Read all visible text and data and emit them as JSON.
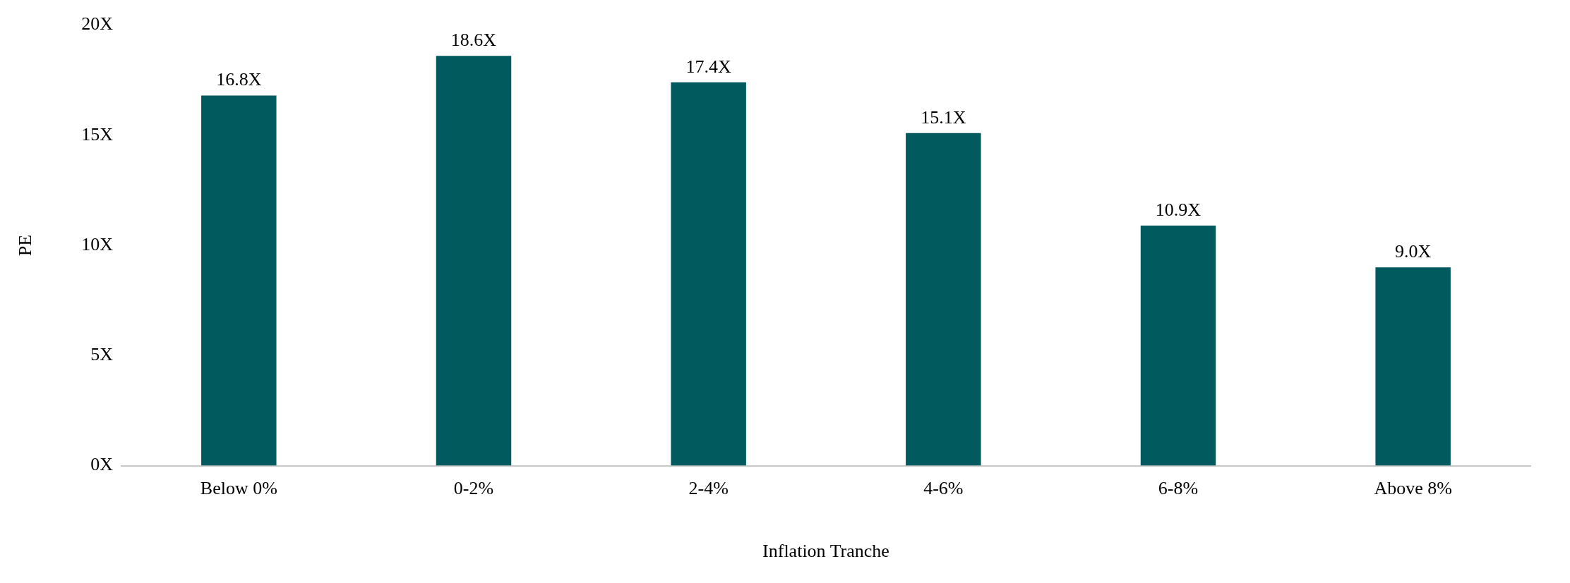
{
  "chart_data": {
    "type": "bar",
    "xlabel": "Inflation Tranche",
    "ylabel": "PE",
    "categories": [
      "Below 0%",
      "0-2%",
      "2-4%",
      "4-6%",
      "6-8%",
      "Above 8%"
    ],
    "values": [
      16.8,
      18.6,
      17.4,
      15.1,
      10.9,
      9.0
    ],
    "value_labels": [
      "16.8X",
      "18.6X",
      "17.4X",
      "15.1X",
      "10.9X",
      "9.0X"
    ],
    "color": "#005a5e",
    "ylim": [
      0,
      20
    ],
    "yticks": [
      {
        "value": 0,
        "label": "0X"
      },
      {
        "value": 5,
        "label": "5X"
      },
      {
        "value": 10,
        "label": "10X"
      },
      {
        "value": 15,
        "label": "15X"
      },
      {
        "value": 20,
        "label": "20X"
      }
    ],
    "grid": false,
    "legend": false
  }
}
